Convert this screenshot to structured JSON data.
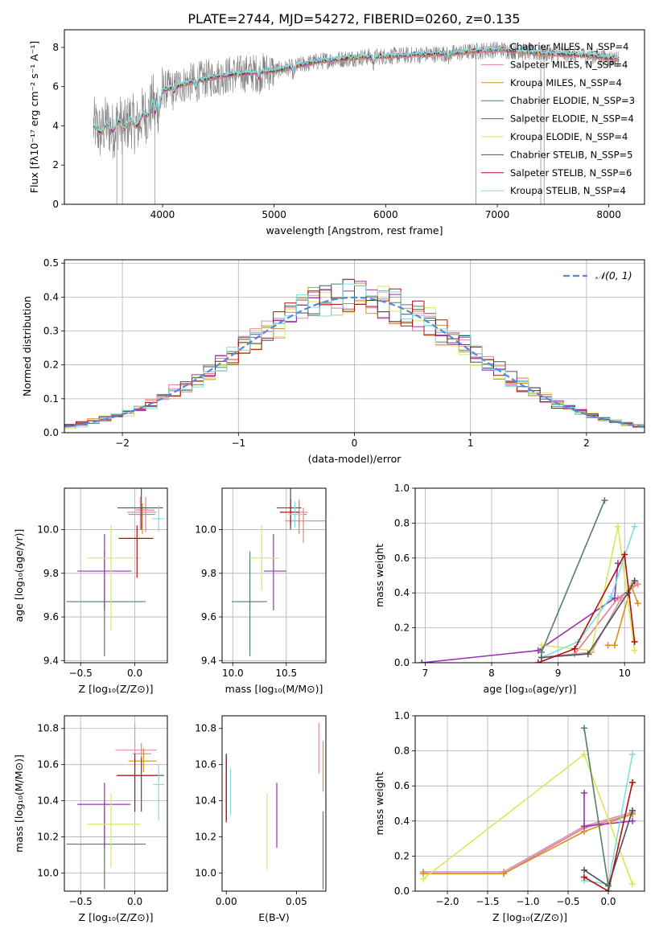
{
  "figure_title": "PLATE=2744, MJD=54272, FIBERID=0260, z=0.135",
  "series_colors": [
    "#d98fb8",
    "#e67c90",
    "#d88f20",
    "#558060",
    "#9933b0",
    "#d8e858",
    "#505058",
    "#b01010",
    "#80dde0"
  ],
  "chart_data": [
    {
      "id": "spectrum",
      "type": "line",
      "xlabel": "wavelength [Angstrom, rest frame]",
      "ylabel": "Flux [fλ10⁻¹⁷ erg cm⁻² s⁻¹ A⁻¹]",
      "xlim": [
        3120,
        8320
      ],
      "ylim": [
        0,
        8.9
      ],
      "xticks": [
        4000,
        5000,
        6000,
        7000,
        8000
      ],
      "yticks": [
        0,
        2,
        4,
        6,
        8
      ],
      "legend_position": "right",
      "legend": [
        "Chabrier MILES, N_SSP=4",
        "Salpeter MILES, N_SSP=4",
        "Kroupa MILES, N_SSP=4",
        "Chabrier ELODIE, N_SSP=3",
        "Salpeter ELODIE, N_SSP=4",
        "Kroupa ELODIE, N_SSP=4",
        "Chabrier STELIB, N_SSP=5",
        "Salpeter STELIB, N_SSP=6",
        "Kroupa STELIB, N_SSP=4"
      ],
      "continuum": {
        "x": [
          3400,
          3600,
          3800,
          4000,
          4300,
          4600,
          5000,
          5400,
          5800,
          6200,
          6600,
          7000,
          7400,
          7800,
          8080
        ],
        "y": [
          3.8,
          4.0,
          4.2,
          5.8,
          6.3,
          6.6,
          6.8,
          7.3,
          7.5,
          7.6,
          7.7,
          7.9,
          7.7,
          7.6,
          7.4
        ]
      }
    },
    {
      "id": "residuals",
      "type": "histogram",
      "xlabel": "(data-model)/error",
      "ylabel": "Normed distribution",
      "xlim": [
        -2.5,
        2.5
      ],
      "ylim": [
        0,
        0.51
      ],
      "xticks": [
        -2,
        -1,
        0,
        1,
        2
      ],
      "yticks": [
        0.0,
        0.1,
        0.2,
        0.3,
        0.4,
        0.5
      ],
      "grid": true,
      "legend": [
        "𝒩(0, 1)"
      ],
      "legend_position": "top-right"
    },
    {
      "id": "age-vs-Z",
      "type": "errorbar",
      "xlabel": "Z [log₁₀(Z/Z⊙)]",
      "ylabel": "age  [log₁₀(age/yr)]",
      "xlim": [
        -0.65,
        0.3
      ],
      "ylim": [
        9.39,
        10.19
      ],
      "xticks": [
        -0.5,
        0.0
      ],
      "yticks": [
        9.4,
        9.6,
        9.8,
        10.0
      ],
      "grid": true,
      "points": [
        {
          "x": 0.05,
          "y": 10.08,
          "xerr": [
            0.12,
            0.15
          ],
          "yerr": [
            0.08,
            0.07
          ]
        },
        {
          "x": 0.1,
          "y": 10.09,
          "xerr": [
            0.1,
            0.08
          ],
          "yerr": [
            0.1,
            0.06
          ]
        },
        {
          "x": 0.07,
          "y": 10.07,
          "xerr": [
            0.13,
            0.12
          ],
          "yerr": [
            0.09,
            0.05
          ]
        },
        {
          "x": -0.28,
          "y": 9.67,
          "xerr": [
            0.35,
            0.38
          ],
          "yerr": [
            0.25,
            0.23
          ]
        },
        {
          "x": -0.28,
          "y": 9.81,
          "xerr": [
            0.25,
            0.25
          ],
          "yerr": [
            0.18,
            0.17
          ]
        },
        {
          "x": -0.22,
          "y": 9.87,
          "xerr": [
            0.22,
            0.27
          ],
          "yerr": [
            0.33,
            0.15
          ]
        },
        {
          "x": 0.06,
          "y": 10.1,
          "xerr": [
            0.22,
            0.2
          ],
          "yerr": [
            0.1,
            0.09
          ]
        },
        {
          "x": 0.02,
          "y": 9.96,
          "xerr": [
            0.17,
            0.15
          ],
          "yerr": [
            0.18,
            0.06
          ]
        },
        {
          "x": 0.22,
          "y": 10.05,
          "xerr": [
            0.06,
            0.05
          ],
          "yerr": [
            0.06,
            0.06
          ]
        }
      ]
    },
    {
      "id": "age-vs-mass",
      "type": "errorbar",
      "xlabel": "mass [log₁₀(M/M⊙)]",
      "ylabel": "",
      "xlim": [
        9.9,
        10.87
      ],
      "ylim": [
        9.39,
        10.19
      ],
      "xticks": [
        10.0,
        10.5
      ],
      "yticks": [
        9.4,
        9.6,
        9.8,
        10.0
      ],
      "grid": true,
      "points": [
        {
          "x": 10.62,
          "y": 10.08,
          "xerr": [
            0.07,
            0.08
          ],
          "yerr": [
            0.07,
            0.06
          ]
        },
        {
          "x": 10.66,
          "y": 10.04,
          "xerr": [
            0.17,
            0.2
          ],
          "yerr": [
            0.1,
            0.06
          ]
        },
        {
          "x": 10.62,
          "y": 10.07,
          "xerr": [
            0.06,
            0.07
          ],
          "yerr": [
            0.09,
            0.06
          ]
        },
        {
          "x": 10.16,
          "y": 9.67,
          "xerr": [
            0.17,
            0.16
          ],
          "yerr": [
            0.25,
            0.23
          ]
        },
        {
          "x": 10.38,
          "y": 9.81,
          "xerr": [
            0.09,
            0.12
          ],
          "yerr": [
            0.18,
            0.17
          ]
        },
        {
          "x": 10.27,
          "y": 9.87,
          "xerr": [
            0.11,
            0.16
          ],
          "yerr": [
            0.15,
            0.15
          ]
        },
        {
          "x": 10.54,
          "y": 10.1,
          "xerr": [
            0.13,
            0.1
          ],
          "yerr": [
            0.1,
            0.09
          ]
        },
        {
          "x": 10.54,
          "y": 10.08,
          "xerr": [
            0.1,
            0.08
          ],
          "yerr": [
            0.06,
            0.06
          ]
        },
        {
          "x": 10.58,
          "y": 10.07,
          "xerr": [
            0.06,
            0.08
          ],
          "yerr": [
            0.06,
            0.06
          ]
        }
      ]
    },
    {
      "id": "weight-vs-age",
      "type": "line",
      "xlabel": "age  [log₁₀(age/yr)]",
      "ylabel": "mass weight",
      "xlim": [
        6.85,
        10.3
      ],
      "ylim": [
        0,
        1.0
      ],
      "xticks": [
        7,
        8,
        9,
        10
      ],
      "yticks": [
        0.0,
        0.2,
        0.4,
        0.6,
        0.8,
        1.0
      ],
      "grid": true,
      "series": [
        {
          "x": [
            8.75,
            9.5,
            9.95,
            10.15
          ],
          "y": [
            0.03,
            0.06,
            0.37,
            0.46
          ]
        },
        {
          "x": [
            8.75,
            9.25,
            9.9,
            10.2
          ],
          "y": [
            0.03,
            0.05,
            0.37,
            0.45
          ]
        },
        {
          "x": [
            9.75,
            9.85,
            10.1,
            10.2
          ],
          "y": [
            0.1,
            0.1,
            0.44,
            0.34
          ]
        },
        {
          "x": [
            8.75,
            9.7
          ],
          "y": [
            0.06,
            0.93
          ]
        },
        {
          "x": [
            6.95,
            8.7,
            9.85,
            9.9
          ],
          "y": [
            0.0,
            0.07,
            0.37,
            0.57
          ]
        },
        {
          "x": [
            8.75,
            9.5,
            9.9,
            10.15
          ],
          "y": [
            0.1,
            0.07,
            0.78,
            0.07
          ]
        },
        {
          "x": [
            8.75,
            9.45,
            10.05,
            10.15
          ],
          "y": [
            0.03,
            0.05,
            0.4,
            0.47
          ]
        },
        {
          "x": [
            8.7,
            9.25,
            10.0,
            10.15
          ],
          "y": [
            0.0,
            0.08,
            0.62,
            0.12
          ]
        },
        {
          "x": [
            8.75,
            9.3,
            9.8,
            10.15
          ],
          "y": [
            0.03,
            0.12,
            0.38,
            0.78
          ]
        }
      ]
    },
    {
      "id": "mass-vs-Z",
      "type": "errorbar",
      "xlabel": "Z [log₁₀(Z/Z⊙)]",
      "ylabel": "mass [log₁₀(M/M⊙)]",
      "xlim": [
        -0.65,
        0.3
      ],
      "ylim": [
        9.9,
        10.87
      ],
      "xticks": [
        -0.5,
        0.0
      ],
      "yticks": [
        10.0,
        10.2,
        10.4,
        10.6,
        10.8
      ],
      "grid": true,
      "points": [
        {
          "x": 0.0,
          "y": 10.68,
          "xerr": [
            0.18,
            0.2
          ],
          "yerr": [
            0.07,
            0.15
          ]
        },
        {
          "x": 0.06,
          "y": 10.66,
          "xerr": [
            0.08,
            0.09
          ],
          "yerr": [
            0.11,
            0.06
          ]
        },
        {
          "x": 0.08,
          "y": 10.62,
          "xerr": [
            0.14,
            0.12
          ],
          "yerr": [
            0.06,
            0.07
          ]
        },
        {
          "x": -0.28,
          "y": 10.16,
          "xerr": [
            0.35,
            0.38
          ],
          "yerr": [
            0.25,
            0.24
          ]
        },
        {
          "x": -0.28,
          "y": 10.38,
          "xerr": [
            0.25,
            0.24
          ],
          "yerr": [
            0.24,
            0.12
          ]
        },
        {
          "x": -0.22,
          "y": 10.27,
          "xerr": [
            0.22,
            0.27
          ],
          "yerr": [
            0.24,
            0.17
          ]
        },
        {
          "x": 0.06,
          "y": 10.54,
          "xerr": [
            0.22,
            0.21
          ],
          "yerr": [
            0.2,
            0.1
          ]
        },
        {
          "x": 0.0,
          "y": 10.54,
          "xerr": [
            0.17,
            0.22
          ],
          "yerr": [
            0.2,
            0.12
          ]
        },
        {
          "x": 0.22,
          "y": 10.49,
          "xerr": [
            0.05,
            0.05
          ],
          "yerr": [
            0.2,
            0.11
          ]
        }
      ]
    },
    {
      "id": "mass-vs-EBV",
      "type": "errorbar",
      "xlabel": "E(B-V)",
      "ylabel": "",
      "xlim": [
        -0.003,
        0.071
      ],
      "ylim": [
        9.9,
        10.87
      ],
      "xticks": [
        0.0,
        0.05
      ],
      "yticks": [
        10.0,
        10.2,
        10.4,
        10.6,
        10.8
      ],
      "grid": false,
      "points": [
        {
          "x": 0.066,
          "y": 10.69,
          "yerr": [
            0.14,
            0.14
          ]
        },
        {
          "x": 0.0,
          "y": 10.49,
          "yerr": [
            0.17,
            0.17
          ]
        },
        {
          "x": 0.069,
          "y": 10.59,
          "yerr": [
            0.14,
            0.14
          ]
        },
        {
          "x": 0.069,
          "y": 10.12,
          "yerr": [
            0.21,
            0.22
          ]
        },
        {
          "x": 0.036,
          "y": 10.32,
          "yerr": [
            0.18,
            0.18
          ]
        },
        {
          "x": 0.029,
          "y": 10.23,
          "yerr": [
            0.21,
            0.21
          ]
        },
        {
          "x": 0.0,
          "y": 10.47,
          "yerr": [
            0.18,
            0.18
          ]
        },
        {
          "x": 0.0,
          "y": 10.47,
          "yerr": [
            0.19,
            0.19
          ]
        },
        {
          "x": 0.003,
          "y": 10.45,
          "yerr": [
            0.13,
            0.13
          ]
        }
      ]
    },
    {
      "id": "weight-vs-Z",
      "type": "line",
      "xlabel": "Z [log₁₀(Z/Z⊙)]",
      "ylabel": "mass weight",
      "xlim": [
        -2.4,
        0.45
      ],
      "ylim": [
        0,
        1.0
      ],
      "xticks": [
        -2.0,
        -1.5,
        -1.0,
        -0.5,
        0.0
      ],
      "yticks": [
        0.0,
        0.2,
        0.4,
        0.6,
        0.8,
        1.0
      ],
      "grid": true,
      "series": [
        {
          "x": [
            -2.3,
            -1.3,
            -0.3,
            0.3
          ],
          "y": [
            0.11,
            0.11,
            0.37,
            0.45
          ]
        },
        {
          "x": [
            -2.3,
            -1.3,
            -0.3,
            0.3
          ],
          "y": [
            0.1,
            0.1,
            0.36,
            0.44
          ]
        },
        {
          "x": [
            -2.3,
            -1.3,
            -0.3,
            0.3
          ],
          "y": [
            0.1,
            0.1,
            0.34,
            0.44
          ]
        },
        {
          "x": [
            -0.3,
            0.0
          ],
          "y": [
            0.93,
            0.03
          ]
        },
        {
          "x": [
            -0.3,
            -0.3,
            0.3
          ],
          "y": [
            0.56,
            0.37,
            0.4
          ]
        },
        {
          "x": [
            -2.3,
            -0.3,
            0.3
          ],
          "y": [
            0.07,
            0.78,
            0.04
          ]
        },
        {
          "x": [
            -0.3,
            0.0,
            0.3
          ],
          "y": [
            0.12,
            0.03,
            0.46
          ]
        },
        {
          "x": [
            -0.3,
            0.0,
            0.3
          ],
          "y": [
            0.08,
            0.0,
            0.62
          ]
        },
        {
          "x": [
            -0.3,
            0.0,
            0.3
          ],
          "y": [
            0.06,
            0.04,
            0.78
          ]
        }
      ]
    }
  ]
}
